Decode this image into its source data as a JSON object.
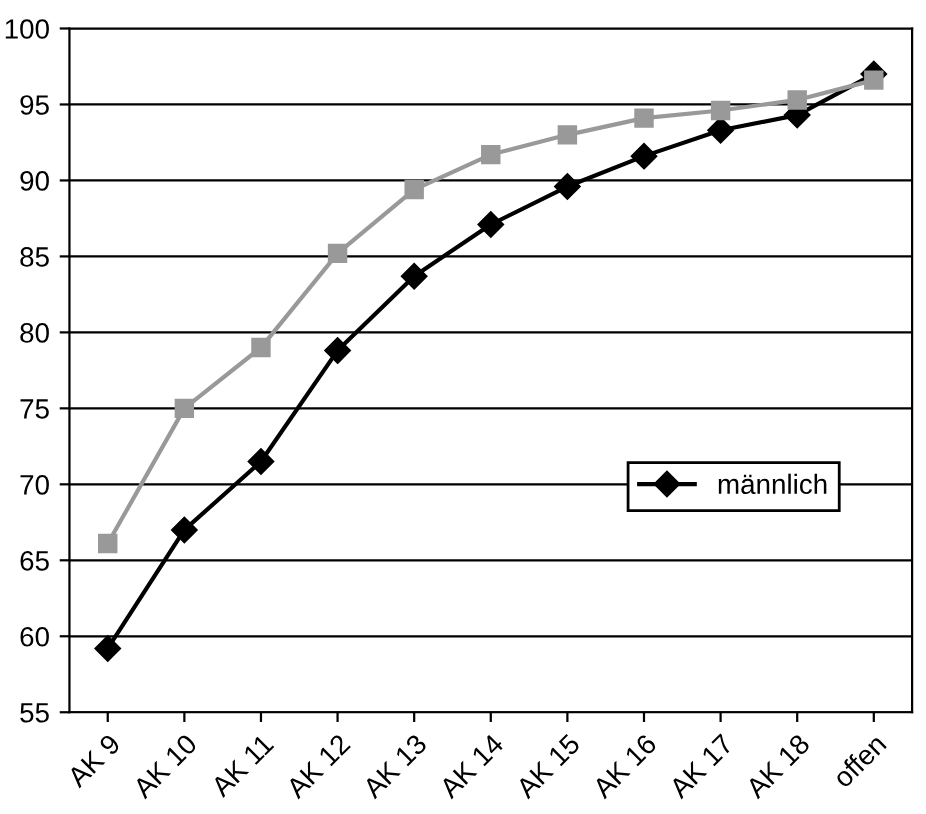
{
  "chart_data": {
    "type": "line",
    "categories": [
      "AK 9",
      "AK 10",
      "AK 11",
      "AK 12",
      "AK 13",
      "AK 14",
      "AK 15",
      "AK 16",
      "AK 17",
      "AK 18",
      "offen"
    ],
    "series": [
      {
        "color": "#999999",
        "marker": "square",
        "values": [
          66.1,
          75,
          79,
          85.2,
          89.4,
          91.7,
          93,
          94.1,
          94.6,
          95.3,
          96.6
        ]
      },
      {
        "name": "männlich",
        "color": "#000000",
        "marker": "diamond",
        "values": [
          59.2,
          67,
          71.5,
          78.8,
          83.7,
          87.1,
          89.6,
          91.6,
          93.3,
          94.3,
          97
        ]
      }
    ],
    "ylim": [
      55,
      100
    ],
    "yticks": [
      55,
      60,
      65,
      70,
      75,
      80,
      85,
      90,
      95,
      100
    ],
    "grid": "y",
    "legend": "right",
    "line_style": "solid"
  }
}
